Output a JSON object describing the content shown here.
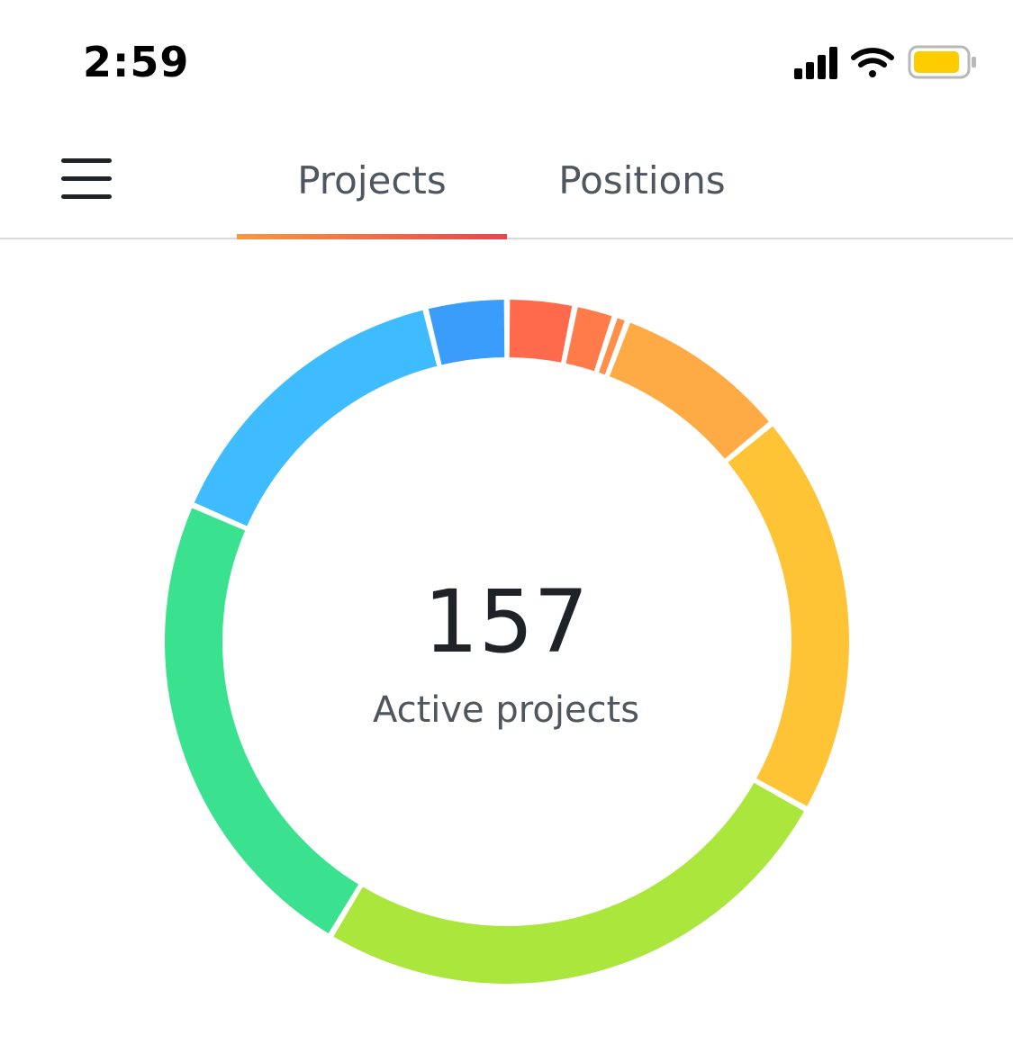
{
  "status_bar": {
    "time": "2:59",
    "icons": [
      "signal-icon",
      "wifi-icon",
      "battery-icon"
    ],
    "battery_color": "#ffcc00"
  },
  "nav": {
    "menu_icon": "hamburger-menu-icon",
    "tabs": [
      {
        "label": "Projects",
        "active": true
      },
      {
        "label": "Positions",
        "active": false
      }
    ],
    "indicator_colors": [
      "#f29a45",
      "#e8454e"
    ]
  },
  "summary": {
    "count": "157",
    "label": "Active projects"
  },
  "chart_data": {
    "type": "pie",
    "variant": "donut",
    "total": 157,
    "title": "",
    "unit": "projects",
    "slices": [
      {
        "value": 5,
        "color": "#ff6a4d"
      },
      {
        "value": 3,
        "color": "#ff7b4a"
      },
      {
        "value": 1,
        "color": "#ff8f4a"
      },
      {
        "value": 13,
        "color": "#ffab45"
      },
      {
        "value": 30,
        "color": "#ffc336"
      },
      {
        "value": 40,
        "color": "#abe63c"
      },
      {
        "value": 36,
        "color": "#3ae28f"
      },
      {
        "value": 23,
        "color": "#3ebcff"
      },
      {
        "value": 6,
        "color": "#3a9dfb"
      }
    ]
  }
}
